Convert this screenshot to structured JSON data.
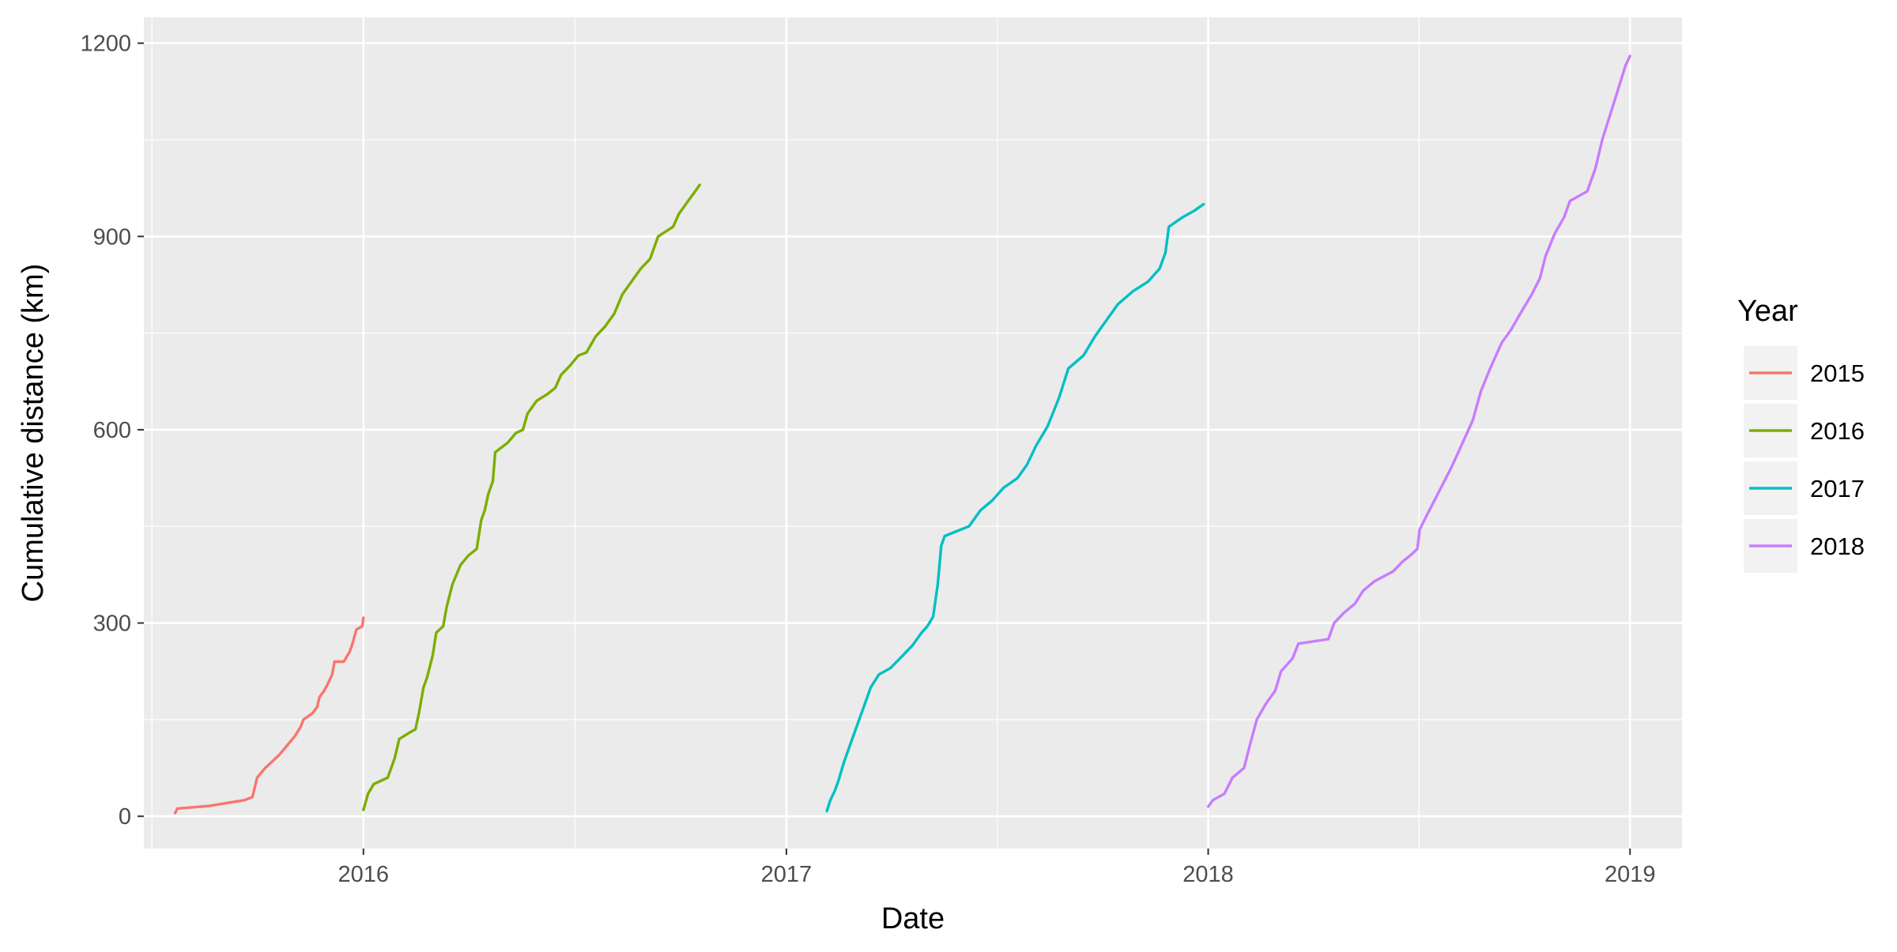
{
  "chart_data": {
    "type": "line",
    "xlabel": "Date",
    "ylabel": "Cumulative distance (km)",
    "x_scale": "date",
    "xlim": [
      "2015-06-25",
      "2019-02-15"
    ],
    "ylim": [
      -50,
      1240
    ],
    "x_ticks": [
      "2016",
      "2017",
      "2018",
      "2019"
    ],
    "y_ticks": [
      "0",
      "300",
      "600",
      "900",
      "1200"
    ],
    "grid": true,
    "legend": {
      "title": "Year",
      "position": "right"
    },
    "series": [
      {
        "name": "2015",
        "color": "#F8766D",
        "points": [
          [
            "2015-07-22",
            5
          ],
          [
            "2015-07-24",
            12
          ],
          [
            "2015-08-20",
            16
          ],
          [
            "2015-09-20",
            25
          ],
          [
            "2015-09-27",
            30
          ],
          [
            "2015-10-01",
            60
          ],
          [
            "2015-10-08",
            75
          ],
          [
            "2015-10-20",
            95
          ],
          [
            "2015-10-27",
            110
          ],
          [
            "2015-11-03",
            125
          ],
          [
            "2015-11-08",
            140
          ],
          [
            "2015-11-10",
            150
          ],
          [
            "2015-11-18",
            160
          ],
          [
            "2015-11-22",
            170
          ],
          [
            "2015-11-24",
            185
          ],
          [
            "2015-11-28",
            195
          ],
          [
            "2015-12-01",
            205
          ],
          [
            "2015-12-05",
            220
          ],
          [
            "2015-12-07",
            240
          ],
          [
            "2015-12-15",
            240
          ],
          [
            "2015-12-20",
            255
          ],
          [
            "2015-12-22",
            265
          ],
          [
            "2015-12-26",
            290
          ],
          [
            "2015-12-31",
            295
          ],
          [
            "2016-01-01",
            308
          ]
        ]
      },
      {
        "name": "2016",
        "color": "#7CAE00",
        "points": [
          [
            "2016-01-01",
            10
          ],
          [
            "2016-01-05",
            35
          ],
          [
            "2016-01-10",
            50
          ],
          [
            "2016-01-22",
            60
          ],
          [
            "2016-01-25",
            75
          ],
          [
            "2016-01-28",
            90
          ],
          [
            "2016-02-01",
            120
          ],
          [
            "2016-02-10",
            130
          ],
          [
            "2016-02-15",
            135
          ],
          [
            "2016-02-18",
            160
          ],
          [
            "2016-02-22",
            200
          ],
          [
            "2016-02-25",
            215
          ],
          [
            "2016-03-01",
            250
          ],
          [
            "2016-03-04",
            285
          ],
          [
            "2016-03-10",
            295
          ],
          [
            "2016-03-13",
            325
          ],
          [
            "2016-03-18",
            360
          ],
          [
            "2016-03-25",
            390
          ],
          [
            "2016-04-01",
            405
          ],
          [
            "2016-04-08",
            415
          ],
          [
            "2016-04-12",
            460
          ],
          [
            "2016-04-15",
            475
          ],
          [
            "2016-04-18",
            500
          ],
          [
            "2016-04-22",
            520
          ],
          [
            "2016-04-24",
            565
          ],
          [
            "2016-05-05",
            580
          ],
          [
            "2016-05-12",
            595
          ],
          [
            "2016-05-18",
            600
          ],
          [
            "2016-05-22",
            625
          ],
          [
            "2016-05-30",
            645
          ],
          [
            "2016-06-08",
            655
          ],
          [
            "2016-06-15",
            665
          ],
          [
            "2016-06-20",
            685
          ],
          [
            "2016-06-28",
            700
          ],
          [
            "2016-07-05",
            715
          ],
          [
            "2016-07-12",
            720
          ],
          [
            "2016-07-20",
            745
          ],
          [
            "2016-07-28",
            760
          ],
          [
            "2016-08-05",
            780
          ],
          [
            "2016-08-12",
            810
          ],
          [
            "2016-08-20",
            830
          ],
          [
            "2016-08-28",
            850
          ],
          [
            "2016-09-05",
            865
          ],
          [
            "2016-09-12",
            900
          ],
          [
            "2016-09-25",
            915
          ],
          [
            "2016-09-30",
            935
          ],
          [
            "2016-10-08",
            955
          ],
          [
            "2016-10-14",
            970
          ],
          [
            "2016-10-18",
            980
          ]
        ]
      },
      {
        "name": "2017",
        "color": "#00BFC4",
        "points": [
          [
            "2017-02-05",
            8
          ],
          [
            "2017-02-08",
            25
          ],
          [
            "2017-02-12",
            40
          ],
          [
            "2017-02-15",
            55
          ],
          [
            "2017-02-20",
            85
          ],
          [
            "2017-02-25",
            110
          ],
          [
            "2017-03-02",
            135
          ],
          [
            "2017-03-08",
            165
          ],
          [
            "2017-03-15",
            200
          ],
          [
            "2017-03-22",
            220
          ],
          [
            "2017-04-01",
            230
          ],
          [
            "2017-04-12",
            250
          ],
          [
            "2017-04-20",
            265
          ],
          [
            "2017-04-28",
            285
          ],
          [
            "2017-05-03",
            295
          ],
          [
            "2017-05-08",
            310
          ],
          [
            "2017-05-12",
            360
          ],
          [
            "2017-05-15",
            420
          ],
          [
            "2017-05-18",
            435
          ],
          [
            "2017-06-08",
            450
          ],
          [
            "2017-06-18",
            475
          ],
          [
            "2017-06-28",
            490
          ],
          [
            "2017-07-08",
            510
          ],
          [
            "2017-07-20",
            525
          ],
          [
            "2017-07-28",
            545
          ],
          [
            "2017-08-05",
            575
          ],
          [
            "2017-08-15",
            605
          ],
          [
            "2017-08-25",
            650
          ],
          [
            "2017-09-02",
            695
          ],
          [
            "2017-09-15",
            715
          ],
          [
            "2017-09-25",
            745
          ],
          [
            "2017-10-05",
            770
          ],
          [
            "2017-10-15",
            795
          ],
          [
            "2017-10-28",
            815
          ],
          [
            "2017-11-10",
            830
          ],
          [
            "2017-11-20",
            850
          ],
          [
            "2017-11-25",
            875
          ],
          [
            "2017-11-28",
            915
          ],
          [
            "2017-12-10",
            930
          ],
          [
            "2017-12-20",
            940
          ],
          [
            "2017-12-28",
            950
          ]
        ]
      },
      {
        "name": "2018",
        "color": "#C77CFF",
        "points": [
          [
            "2018-01-01",
            15
          ],
          [
            "2018-01-05",
            25
          ],
          [
            "2018-01-15",
            35
          ],
          [
            "2018-01-22",
            60
          ],
          [
            "2018-02-01",
            75
          ],
          [
            "2018-02-06",
            110
          ],
          [
            "2018-02-12",
            150
          ],
          [
            "2018-02-20",
            175
          ],
          [
            "2018-02-28",
            195
          ],
          [
            "2018-03-05",
            225
          ],
          [
            "2018-03-15",
            245
          ],
          [
            "2018-03-20",
            268
          ],
          [
            "2018-04-15",
            275
          ],
          [
            "2018-04-20",
            300
          ],
          [
            "2018-04-28",
            315
          ],
          [
            "2018-05-08",
            330
          ],
          [
            "2018-05-15",
            350
          ],
          [
            "2018-05-25",
            365
          ],
          [
            "2018-06-10",
            380
          ],
          [
            "2018-06-18",
            395
          ],
          [
            "2018-06-25",
            405
          ],
          [
            "2018-07-01",
            415
          ],
          [
            "2018-07-03",
            445
          ],
          [
            "2018-07-10",
            470
          ],
          [
            "2018-07-20",
            505
          ],
          [
            "2018-07-30",
            540
          ],
          [
            "2018-08-08",
            575
          ],
          [
            "2018-08-18",
            615
          ],
          [
            "2018-08-25",
            660
          ],
          [
            "2018-09-02",
            695
          ],
          [
            "2018-09-12",
            735
          ],
          [
            "2018-09-20",
            755
          ],
          [
            "2018-09-28",
            780
          ],
          [
            "2018-10-08",
            810
          ],
          [
            "2018-10-15",
            835
          ],
          [
            "2018-10-20",
            870
          ],
          [
            "2018-10-28",
            905
          ],
          [
            "2018-11-05",
            930
          ],
          [
            "2018-11-10",
            955
          ],
          [
            "2018-11-25",
            970
          ],
          [
            "2018-12-02",
            1005
          ],
          [
            "2018-12-08",
            1050
          ],
          [
            "2018-12-15",
            1090
          ],
          [
            "2018-12-22",
            1130
          ],
          [
            "2018-12-28",
            1165
          ],
          [
            "2019-01-01",
            1180
          ]
        ]
      }
    ]
  }
}
